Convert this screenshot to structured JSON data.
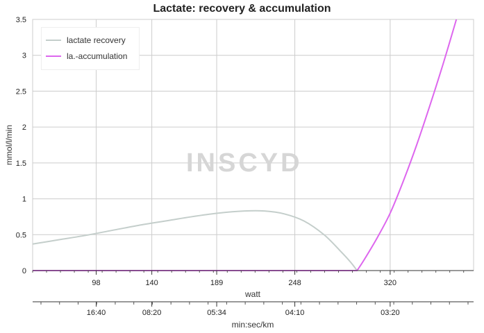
{
  "chart_data": {
    "type": "line",
    "title": "Lactate: recovery & accumulation",
    "ylabel": "mmol/l/min",
    "ylim": [
      0,
      3.5
    ],
    "y_ticks": [
      "0",
      "0.5",
      "1",
      "1.5",
      "2",
      "2.5",
      "3",
      "3.5"
    ],
    "grid": true,
    "legend_position": "top-left",
    "watermark": "INSCYD",
    "x_axis": {
      "label": "watt",
      "range": [
        50,
        383
      ],
      "ticks": [
        98,
        140,
        189,
        248,
        320
      ],
      "tick_labels": [
        "98",
        "140",
        "189",
        "248",
        "320"
      ]
    },
    "x2_axis": {
      "label": "min:sec/km",
      "tick_labels": [
        "16:40",
        "08:20",
        "05:34",
        "04:10",
        "03:20"
      ]
    },
    "series": [
      {
        "name": "lactate recovery",
        "color": "#c4cecb",
        "x": [
          50,
          70,
          90,
          110,
          130,
          150,
          170,
          190,
          210,
          225,
          240,
          255,
          270,
          282,
          290,
          295
        ],
        "y": [
          0.37,
          0.43,
          0.49,
          0.56,
          0.63,
          0.69,
          0.75,
          0.8,
          0.83,
          0.83,
          0.79,
          0.69,
          0.5,
          0.28,
          0.12,
          0.0
        ]
      },
      {
        "name": "la.-accumulation",
        "color": "#dd66ee",
        "x": [
          50,
          295,
          300,
          310,
          320,
          330,
          340,
          350,
          360,
          370
        ],
        "y": [
          0,
          0,
          0.14,
          0.45,
          0.8,
          1.25,
          1.75,
          2.3,
          2.88,
          3.5
        ]
      }
    ]
  }
}
